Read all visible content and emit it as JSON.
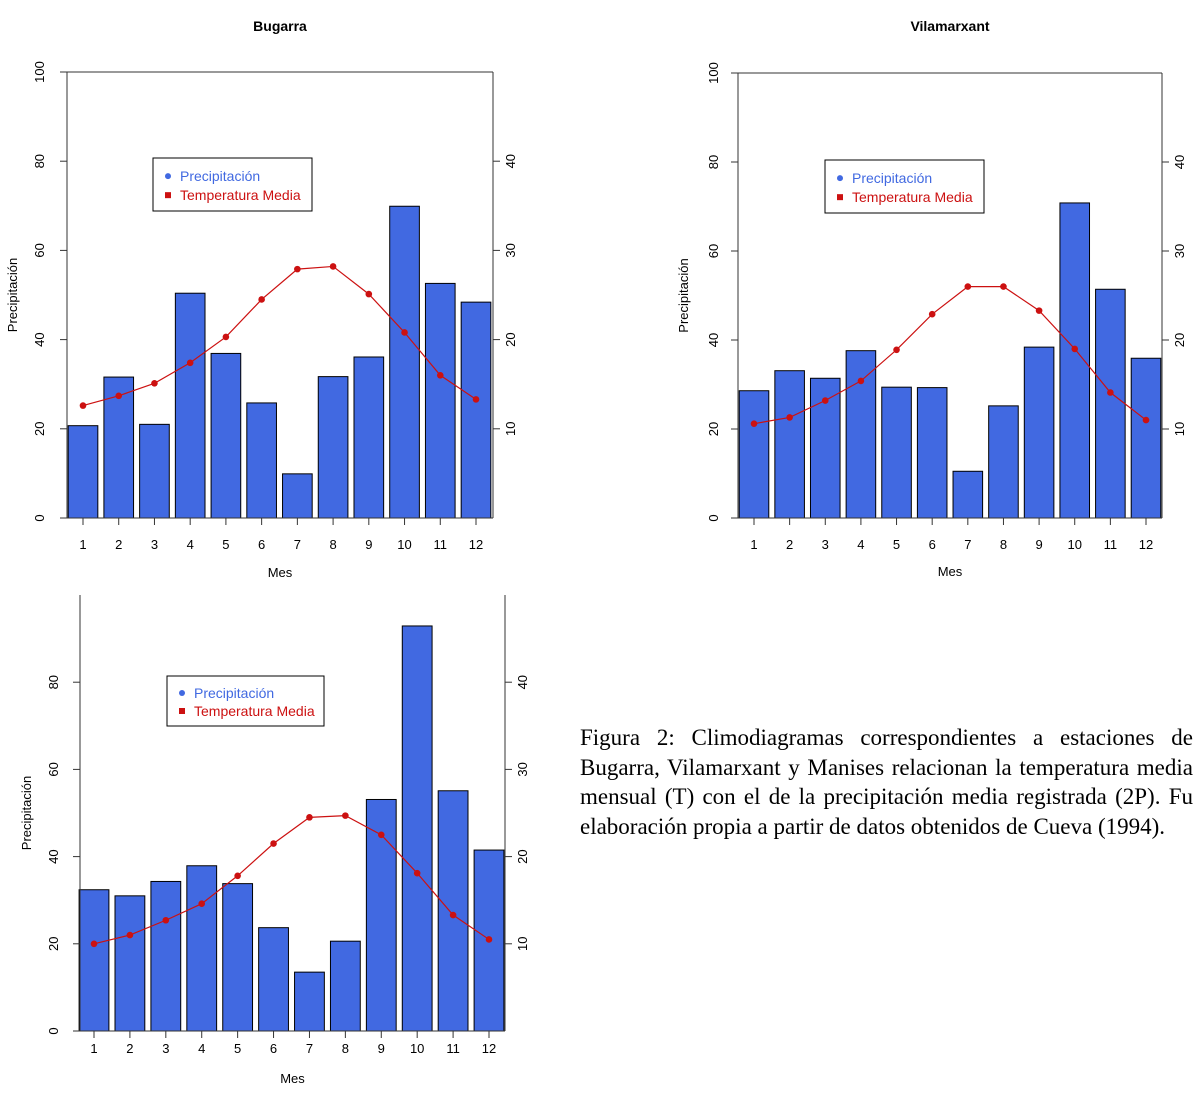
{
  "legend": {
    "precip_label": "Precipitación",
    "temp_label": "Temperatura Media"
  },
  "colors": {
    "bar_fill": "#4169e1",
    "temp_line": "#cc1111",
    "precip_legend": "#4169e1",
    "temp_legend": "#cc1111"
  },
  "caption": "Figura 2: Climodiagramas correspondientes a estaciones de Bugarra, Vilamarxant y Manises relacionan la temperatura media mensual (T) con el de la precipitación media registrada (2P). Fu elaboración propia a partir de datos obtenidos de Cueva (1994).",
  "chart_data": [
    {
      "type": "bar",
      "title": "Bugarra",
      "xlabel": "Mes",
      "ylabel": "Precipitación",
      "categories": [
        "1",
        "2",
        "3",
        "4",
        "5",
        "6",
        "7",
        "8",
        "9",
        "10",
        "11",
        "12"
      ],
      "ylim": [
        0,
        100
      ],
      "yticks": [
        0,
        20,
        40,
        60,
        80,
        100
      ],
      "y2lim": [
        0,
        50
      ],
      "y2ticks": [
        10,
        20,
        30,
        40
      ],
      "series": [
        {
          "name": "Precipitación",
          "axis": "left",
          "type": "bar",
          "values": [
            20.7,
            31.6,
            21.0,
            50.4,
            36.9,
            25.8,
            9.9,
            31.7,
            36.1,
            69.9,
            52.6,
            48.4
          ]
        },
        {
          "name": "Temperatura Media",
          "axis": "right",
          "type": "line",
          "values": [
            12.6,
            13.7,
            15.1,
            17.4,
            20.3,
            24.5,
            27.9,
            28.2,
            25.1,
            20.8,
            16.0,
            13.3
          ]
        }
      ],
      "legend_position": "top-left"
    },
    {
      "type": "bar",
      "title": "Vilamarxant",
      "xlabel": "Mes",
      "ylabel": "Precipitación",
      "categories": [
        "1",
        "2",
        "3",
        "4",
        "5",
        "6",
        "7",
        "8",
        "9",
        "10",
        "11",
        "12"
      ],
      "ylim": [
        0,
        100
      ],
      "yticks": [
        0,
        20,
        40,
        60,
        80,
        100
      ],
      "y2lim": [
        0,
        50
      ],
      "y2ticks": [
        10,
        20,
        30,
        40
      ],
      "series": [
        {
          "name": "Precipitación",
          "axis": "left",
          "type": "bar",
          "values": [
            28.6,
            33.1,
            31.4,
            37.6,
            29.4,
            29.3,
            10.5,
            25.2,
            38.4,
            70.8,
            51.4,
            35.9
          ]
        },
        {
          "name": "Temperatura Media",
          "axis": "right",
          "type": "line",
          "values": [
            10.6,
            11.3,
            13.2,
            15.4,
            18.9,
            22.9,
            26.0,
            26.0,
            23.3,
            19.0,
            14.1,
            11.0
          ]
        }
      ],
      "legend_position": "top-left"
    },
    {
      "type": "bar",
      "title": "",
      "xlabel": "Mes",
      "ylabel": "Precipitación",
      "categories": [
        "1",
        "2",
        "3",
        "4",
        "5",
        "6",
        "7",
        "8",
        "9",
        "10",
        "11",
        "12"
      ],
      "ylim": [
        0,
        100
      ],
      "yticks": [
        0,
        20,
        40,
        60,
        80
      ],
      "y2lim": [
        0,
        50
      ],
      "y2ticks": [
        10,
        20,
        30,
        40
      ],
      "series": [
        {
          "name": "Precipitación",
          "axis": "left",
          "type": "bar",
          "values": [
            32.4,
            31.0,
            34.3,
            37.9,
            33.8,
            23.7,
            13.5,
            20.6,
            53.1,
            92.9,
            55.1,
            41.5
          ]
        },
        {
          "name": "Temperatura Media",
          "axis": "right",
          "type": "line",
          "values": [
            10.0,
            11.0,
            12.7,
            14.6,
            17.8,
            21.5,
            24.5,
            24.7,
            22.5,
            18.1,
            13.3,
            10.5
          ]
        }
      ],
      "legend_position": "top-left"
    }
  ]
}
